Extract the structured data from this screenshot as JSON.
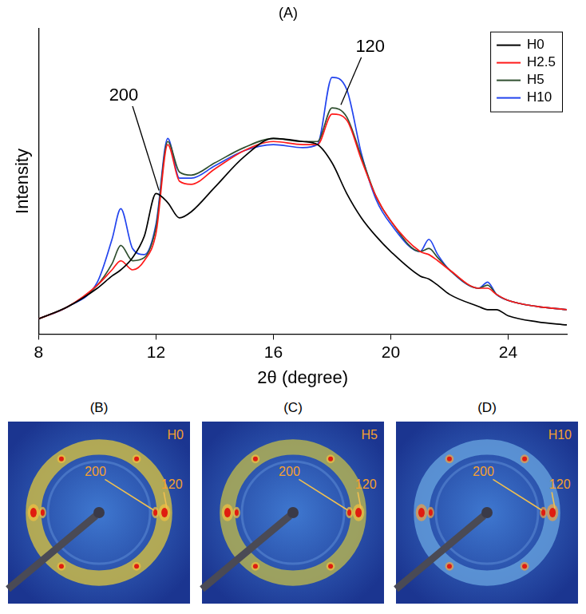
{
  "chart_data": {
    "type": "line",
    "title": "(A)",
    "x_label": "2θ (degree)",
    "y_label": "Intensity",
    "x": [
      8,
      9,
      10,
      10.5,
      10.8,
      11.2,
      11.6,
      12,
      12.4,
      12.8,
      13.2,
      14,
      15,
      16,
      17,
      17.5,
      18,
      18.5,
      19,
      19.5,
      20,
      21,
      21.3,
      21.6,
      22,
      23,
      23.3,
      23.6,
      24,
      25,
      26
    ],
    "series": [
      {
        "name": "H0",
        "color": "#000000",
        "values": [
          5,
          9,
          15,
          19,
          21,
          25,
          32,
          46,
          43,
          38,
          40,
          48,
          58,
          64,
          63,
          62,
          56,
          46,
          38,
          32,
          27,
          19,
          18,
          16,
          13,
          9,
          8,
          8,
          6,
          4,
          3
        ]
      },
      {
        "name": "H2.5",
        "color": "#ff1a1a",
        "values": [
          5,
          9,
          16,
          21,
          24,
          21,
          24,
          33,
          62,
          50,
          49,
          54,
          60,
          63,
          62,
          62,
          72,
          70,
          57,
          45,
          37,
          27,
          26,
          24,
          21,
          15,
          15,
          13,
          11,
          9,
          8
        ]
      },
      {
        "name": "H5",
        "color": "#2f4f2f",
        "values": [
          5,
          9,
          16,
          23,
          29,
          24,
          25,
          35,
          63,
          53,
          52,
          56,
          61,
          64,
          63,
          63,
          74,
          71,
          58,
          45,
          37,
          27,
          28,
          25,
          21,
          15,
          16,
          13,
          11,
          9,
          8
        ]
      },
      {
        "name": "H10",
        "color": "#2244ee",
        "values": [
          5,
          9,
          17,
          31,
          41,
          28,
          26,
          36,
          64,
          51,
          51,
          55,
          60,
          62,
          61,
          62,
          84,
          80,
          59,
          44,
          36,
          27,
          31,
          26,
          21,
          15,
          17,
          13,
          11,
          9,
          8
        ]
      }
    ],
    "xlim": [
      8,
      26
    ],
    "xticks": [
      8,
      12,
      16,
      20,
      24
    ],
    "ylim": [
      0,
      100
    ],
    "tick_labels": "x",
    "grid": false,
    "legend": "upper right",
    "annotations": [
      {
        "text": "200",
        "x": 10.9,
        "y": 78,
        "target": [
          12.1,
          47
        ]
      },
      {
        "text": "120",
        "x": 19.3,
        "y": 94,
        "target": [
          18.3,
          75
        ]
      }
    ]
  },
  "patterns": [
    {
      "label": "(B)",
      "sample": "H0",
      "reflections": [
        "200",
        "120"
      ]
    },
    {
      "label": "(C)",
      "sample": "H5",
      "reflections": [
        "200",
        "120"
      ]
    },
    {
      "label": "(D)",
      "sample": "H10",
      "reflections": [
        "200",
        "120"
      ]
    }
  ]
}
